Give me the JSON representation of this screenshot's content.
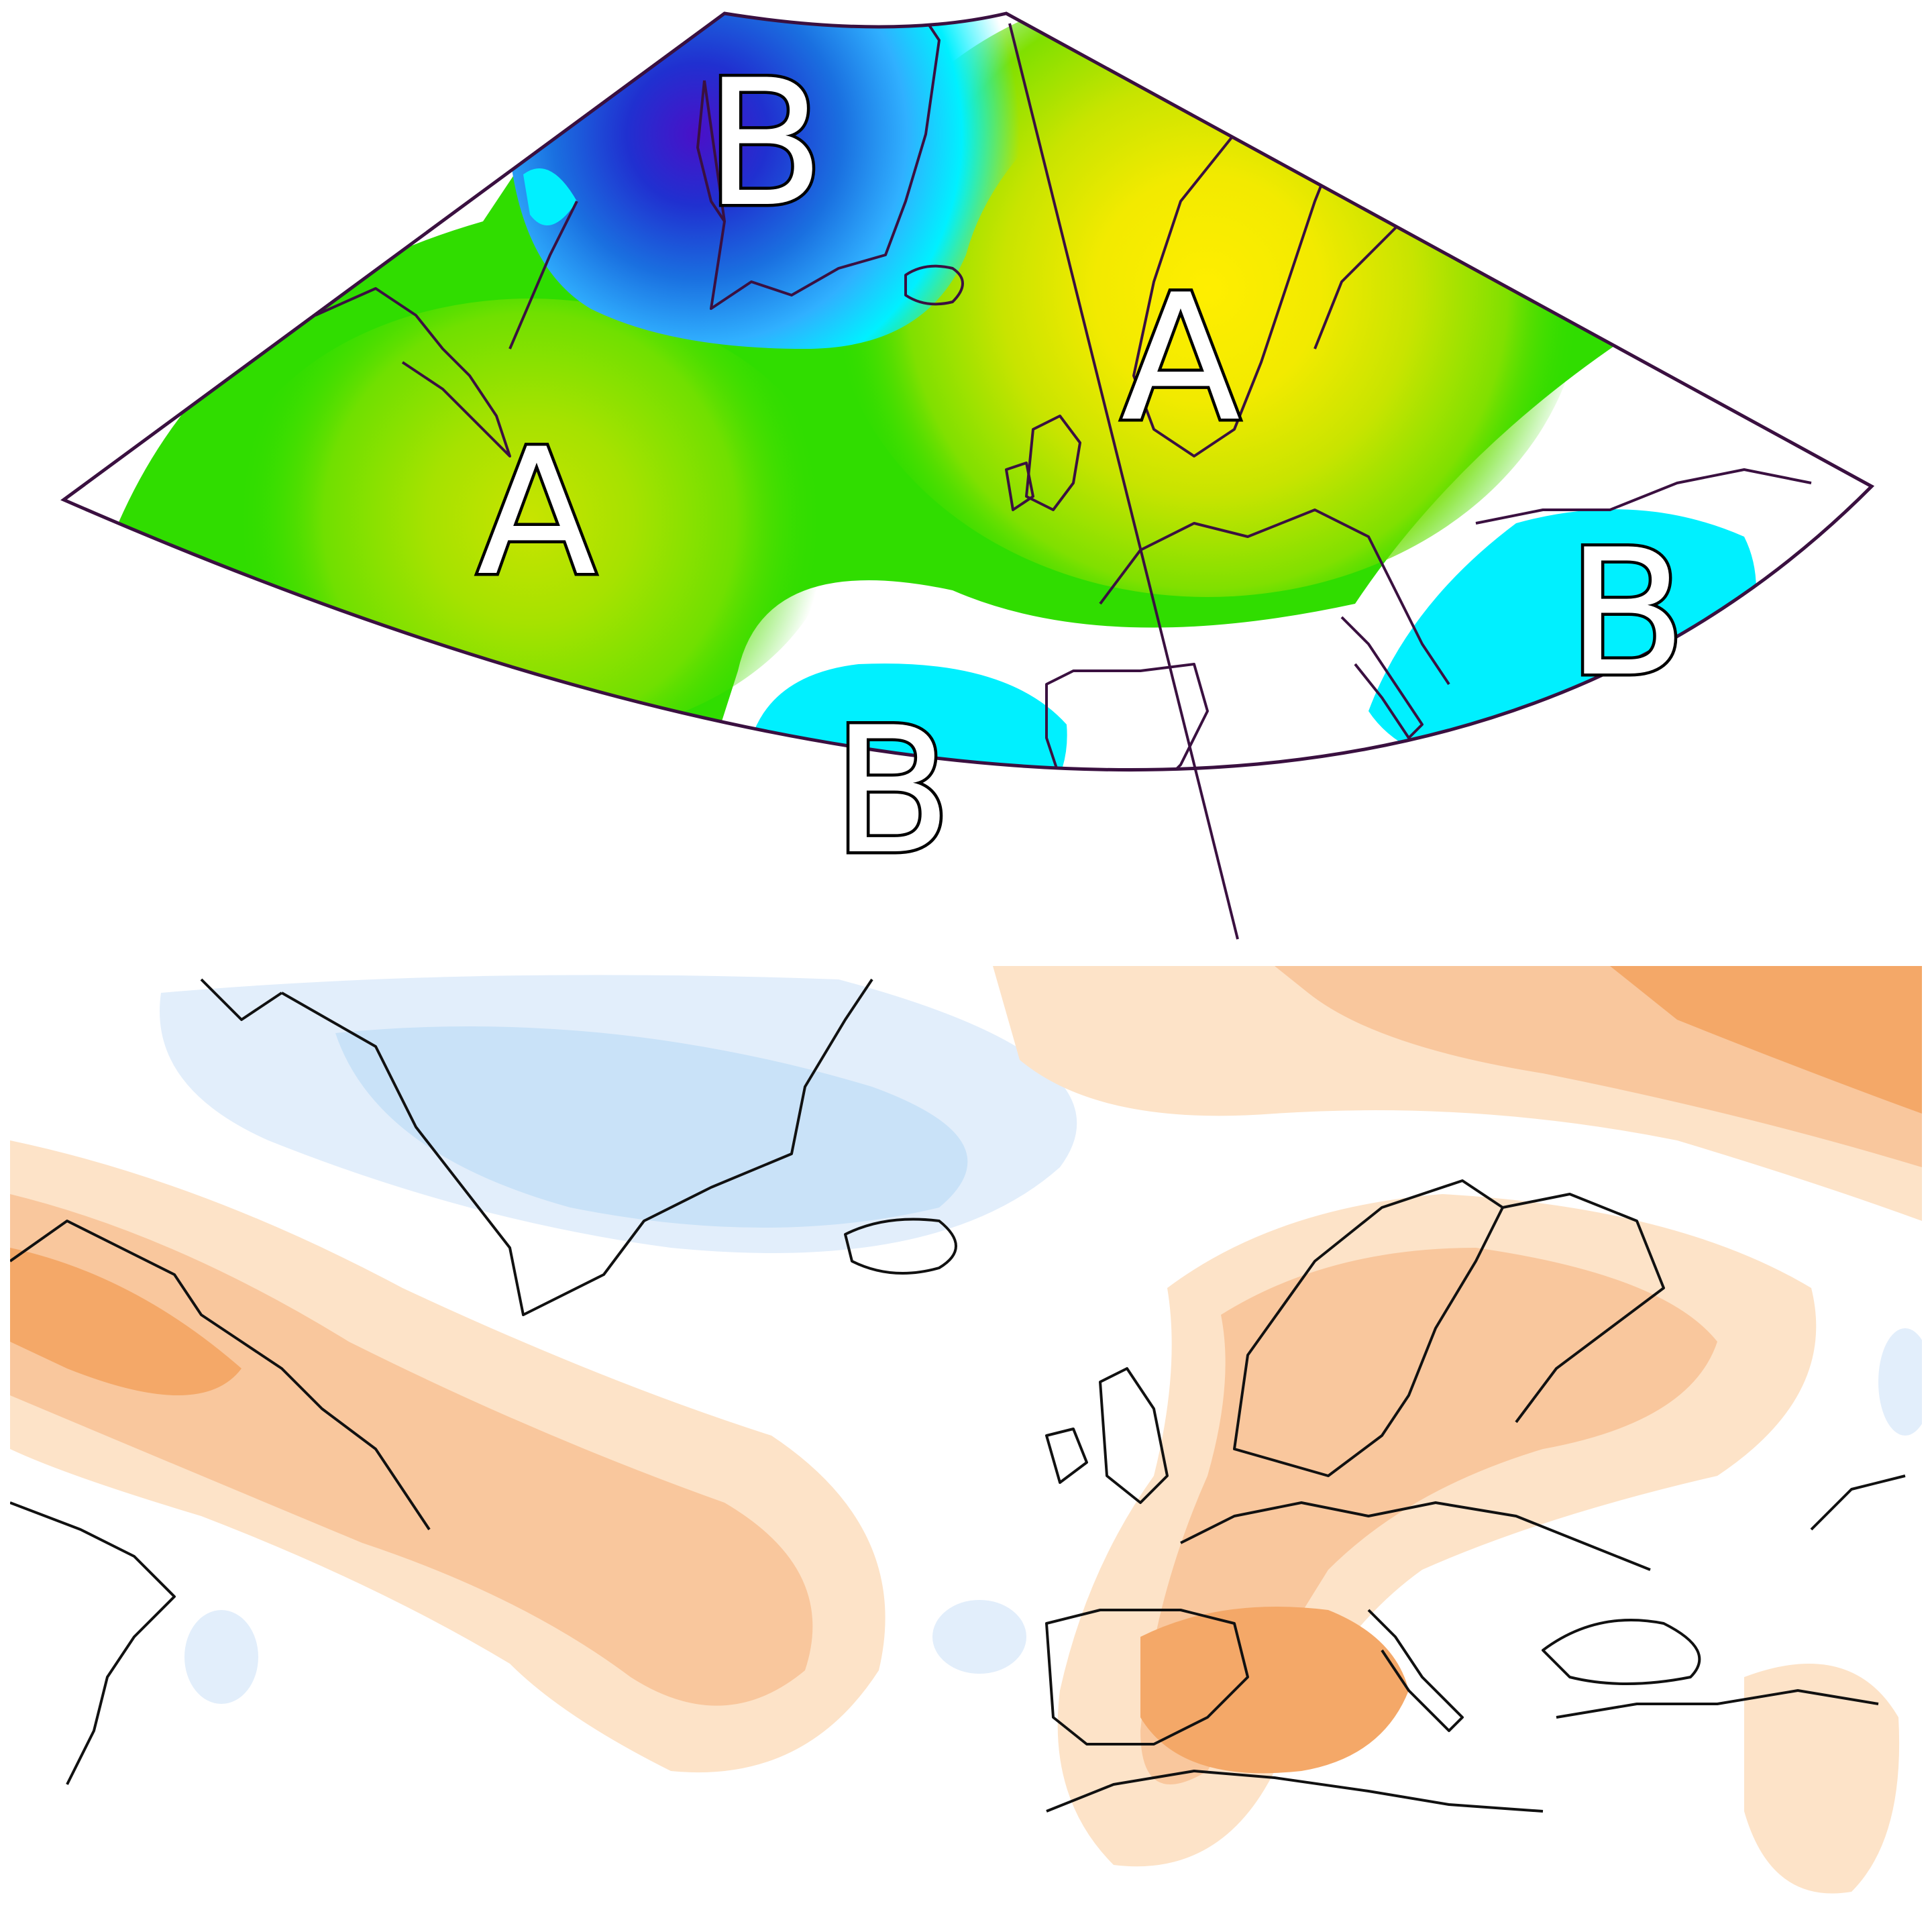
{
  "top_map": {
    "pressure_labels": [
      {
        "text": "B"
      },
      {
        "text": "A"
      },
      {
        "text": "A"
      },
      {
        "text": "B"
      },
      {
        "text": "B"
      }
    ],
    "colors": {
      "deep_low": "#3a10c0",
      "low": "#1550d0",
      "mid_low": "#30a0ff",
      "cyan": "#00f0ff",
      "green": "#30dd00",
      "light_green": "#7ae000",
      "yellow_green": "#c8e400",
      "yellow": "#ffee00",
      "frame": "#3a1040"
    }
  },
  "bottom_map": {
    "colors": {
      "light_blue": "#e2eefb",
      "blue": "#c9e2f8",
      "pale_orange": "#fde3c8",
      "orange": "#f9c79d",
      "dark_orange": "#f4a868"
    }
  }
}
